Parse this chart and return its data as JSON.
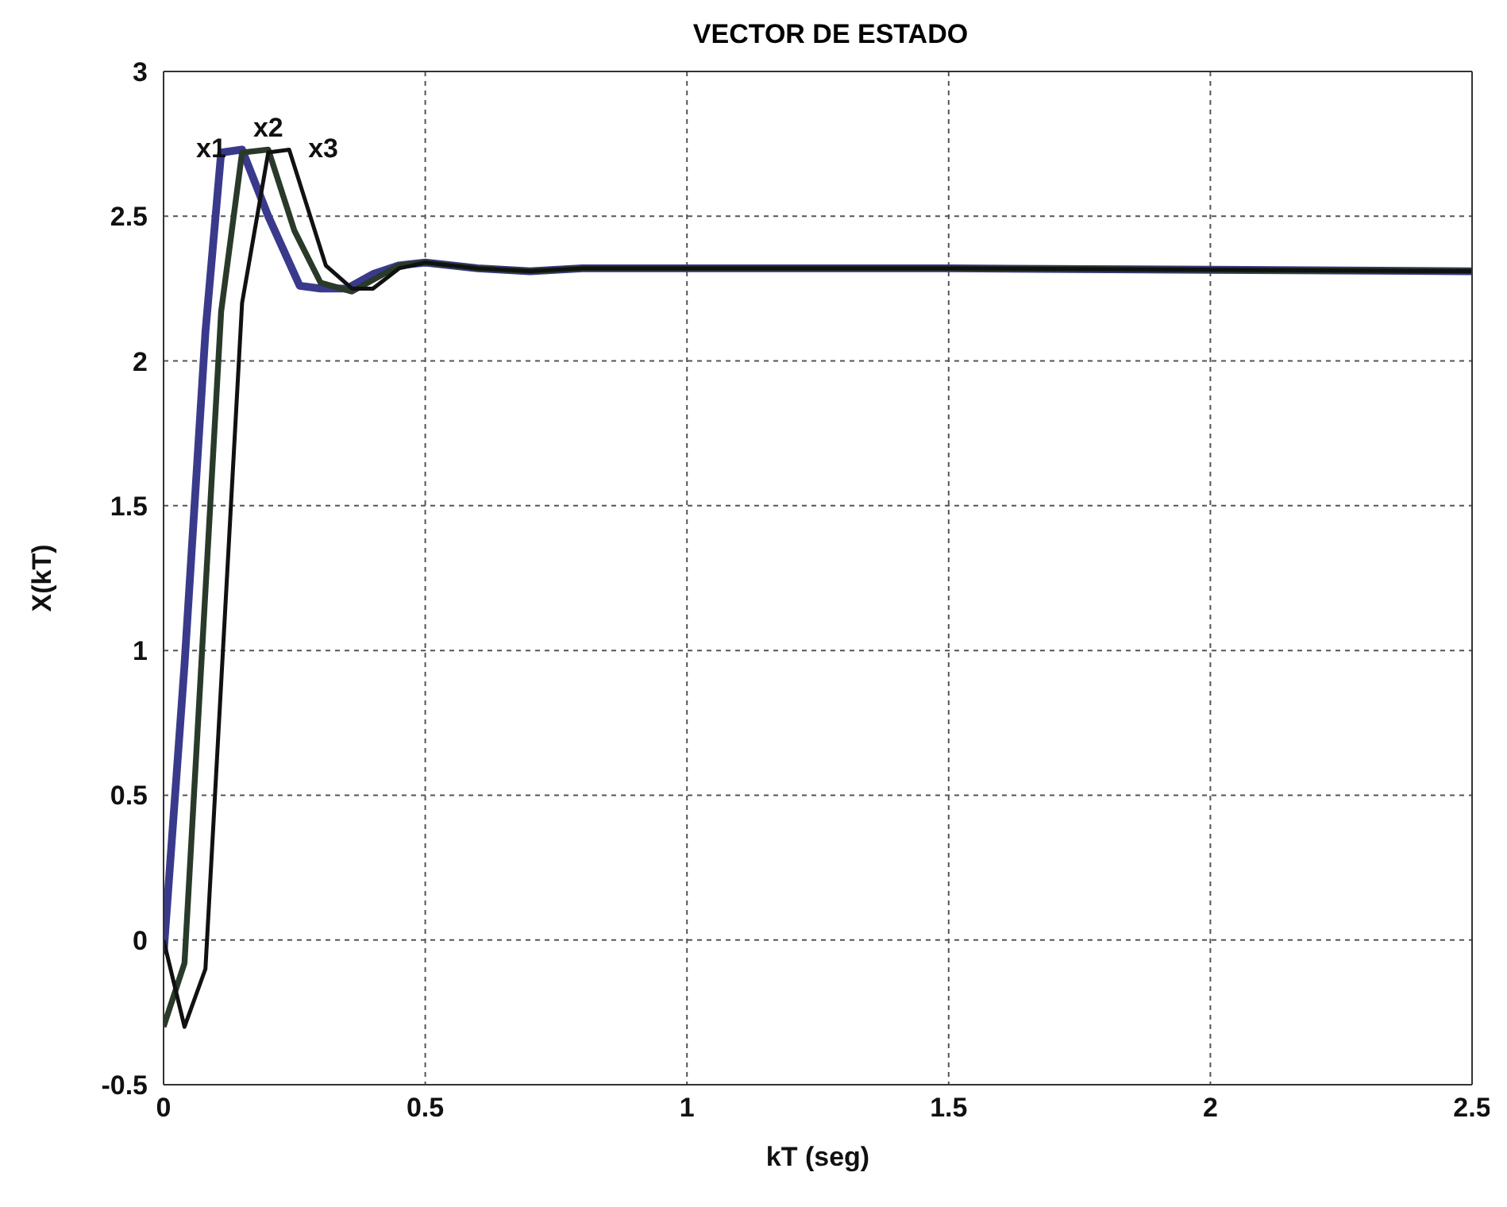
{
  "chart_data": {
    "type": "line",
    "title": "VECTOR DE ESTADO",
    "xlabel": "kT    (seg)",
    "ylabel": "X(kT)",
    "xlim": [
      0,
      2.5
    ],
    "xticks": [
      0,
      0.5,
      1,
      1.5,
      2,
      2.5
    ],
    "ylim": [
      -0.5,
      3
    ],
    "yticks": [
      -0.5,
      0,
      0.5,
      1,
      1.5,
      2,
      2.5,
      3
    ],
    "grid": true,
    "marker": "none",
    "line_style": "solid",
    "legend": false,
    "series": [
      {
        "name": "x1",
        "color": "#3a3a8c",
        "x": [
          0,
          0.04,
          0.08,
          0.11,
          0.15,
          0.2,
          0.26,
          0.3,
          0.35,
          0.4,
          0.45,
          0.5,
          0.6,
          0.7,
          0.8,
          1.5,
          2.5
        ],
        "values": [
          -0.05,
          0.95,
          2.1,
          2.72,
          2.73,
          2.5,
          2.26,
          2.25,
          2.25,
          2.3,
          2.33,
          2.34,
          2.32,
          2.31,
          2.32,
          2.32,
          2.31
        ]
      },
      {
        "name": "x2",
        "color": "#2a3a2a",
        "x": [
          0,
          0.04,
          0.11,
          0.15,
          0.2,
          0.25,
          0.3,
          0.36,
          0.4,
          0.45,
          0.5,
          0.6,
          0.7,
          0.8,
          1.5,
          2.5
        ],
        "values": [
          -0.3,
          -0.08,
          2.17,
          2.72,
          2.73,
          2.45,
          2.27,
          2.24,
          2.28,
          2.33,
          2.34,
          2.32,
          2.31,
          2.32,
          2.32,
          2.31
        ]
      },
      {
        "name": "x3",
        "color": "#111111",
        "x": [
          0,
          0.04,
          0.08,
          0.15,
          0.2,
          0.24,
          0.31,
          0.36,
          0.4,
          0.45,
          0.5,
          0.6,
          0.7,
          0.8,
          1.5,
          2.5
        ],
        "values": [
          0,
          -0.3,
          -0.1,
          2.2,
          2.72,
          2.73,
          2.33,
          2.25,
          2.25,
          2.32,
          2.34,
          2.32,
          2.31,
          2.32,
          2.32,
          2.31
        ]
      }
    ]
  }
}
